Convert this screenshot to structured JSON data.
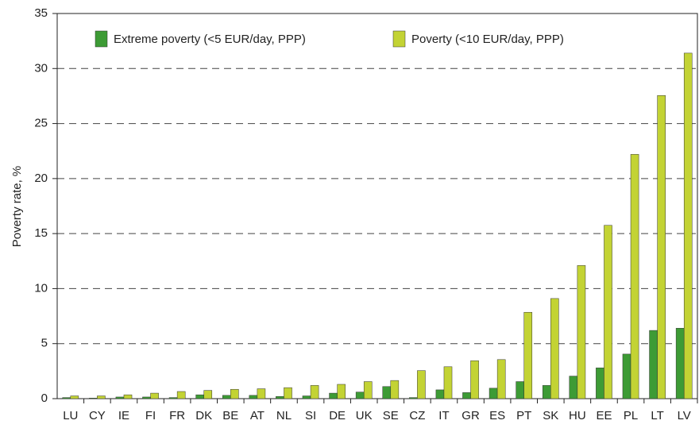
{
  "chart_data": {
    "type": "bar",
    "y_label": "Poverty rate, %",
    "categories": [
      "LU",
      "CY",
      "IE",
      "FI",
      "FR",
      "DK",
      "BE",
      "AT",
      "NL",
      "SI",
      "DE",
      "UK",
      "SE",
      "CZ",
      "IT",
      "GR",
      "ES",
      "PT",
      "SK",
      "HU",
      "EE",
      "PL",
      "LT",
      "LV"
    ],
    "series": [
      {
        "name": "Extreme poverty (<5 EUR/day, PPP)",
        "color": "#3d9b35",
        "values": [
          0.1,
          0.05,
          0.15,
          0.15,
          0.1,
          0.35,
          0.3,
          0.3,
          0.2,
          0.25,
          0.5,
          0.6,
          1.1,
          0.1,
          0.8,
          0.55,
          0.95,
          1.55,
          1.2,
          2.05,
          2.8,
          4.05,
          6.2,
          6.4
        ]
      },
      {
        "name": "Poverty (<10 EUR/day, PPP)",
        "color": "#c3d334",
        "values": [
          0.25,
          0.25,
          0.35,
          0.5,
          0.65,
          0.75,
          0.85,
          0.9,
          1.0,
          1.2,
          1.3,
          1.55,
          1.65,
          2.55,
          2.9,
          3.45,
          3.55,
          7.85,
          9.1,
          12.1,
          15.75,
          22.2,
          27.55,
          31.4
        ]
      }
    ],
    "ylim": [
      0,
      35
    ],
    "yticks": [
      0,
      5,
      10,
      15,
      20,
      25,
      30,
      35
    ],
    "grid": true
  }
}
